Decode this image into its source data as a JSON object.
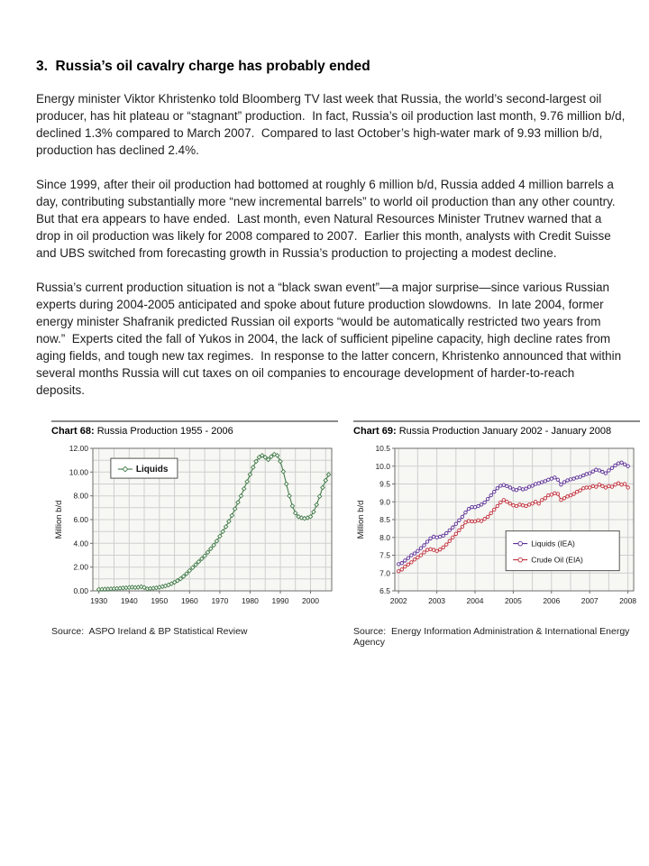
{
  "page": {
    "heading": "3.  Russia’s oil cavalry charge has probably ended",
    "paragraphs": [
      "Energy minister Viktor Khristenko told Bloomberg TV last week that Russia, the world’s second-largest oil producer, has hit plateau or “stagnant” production.  In fact, Russia’s oil production last month, 9.76 million b/d, declined 1.3% compared to March 2007.  Compared to last October’s high-water mark of 9.93 million b/d, production has declined 2.4%.",
      "Since 1999, after their oil production had bottomed at roughly 6 million b/d, Russia added 4 million barrels a day, contributing substantially more “new incremental barrels” to world oil production than any other country.  But that era appears to have ended.  Last month, even Natural Resources Minister Trutnev warned that a drop in oil production was likely for 2008 compared to 2007.  Earlier this month, analysts with Credit Suisse and UBS switched from forecasting growth in Russia’s production to projecting a modest decline.",
      "Russia’s current production situation is not a “black swan event”—a major surprise—since various Russian experts during 2004-2005 anticipated and spoke about future production slowdowns.  In late 2004, former energy minister Shafranik predicted Russian oil exports “would be automatically restricted two years from now.”  Experts cited the fall of Yukos in 2004, the lack of sufficient pipeline capacity, high decline rates from aging fields, and tough new tax regimes.  In response to the latter concern, Khristenko announced that within several months Russia will cut taxes on oil companies to encourage development of harder-to-reach deposits."
    ]
  },
  "chart_data": [
    {
      "id": "chart-68",
      "type": "line",
      "title_bold": "Chart 68:",
      "title_rest": "Russia Production 1955 - 2006",
      "ylabel": "Million b/d",
      "ylim": [
        0,
        12
      ],
      "ytick_step": 2,
      "ytick_decimals": 2,
      "xlim": [
        1928,
        2007
      ],
      "xticks": [
        1930,
        1940,
        1950,
        1960,
        1970,
        1980,
        1990,
        2000
      ],
      "grid": {
        "x0": 1930,
        "dx": 5,
        "y0": 1,
        "dy": 1
      },
      "grid_on": true,
      "x0": 1930,
      "dx": 1,
      "legend_position": "upper-left",
      "plot_bg": "#f7f7f4",
      "series": [
        {
          "name": "Liquids",
          "color": "#457d4b",
          "marker": "diamond",
          "values": [
            0.12,
            0.13,
            0.14,
            0.15,
            0.17,
            0.18,
            0.2,
            0.22,
            0.24,
            0.26,
            0.28,
            0.31,
            0.28,
            0.3,
            0.35,
            0.28,
            0.17,
            0.19,
            0.22,
            0.26,
            0.3,
            0.36,
            0.42,
            0.5,
            0.6,
            0.72,
            0.86,
            1.02,
            1.22,
            1.45,
            1.7,
            1.95,
            2.2,
            2.45,
            2.7,
            2.95,
            3.25,
            3.55,
            3.85,
            4.2,
            4.6,
            5.0,
            5.4,
            5.85,
            6.35,
            6.9,
            7.45,
            8.0,
            8.6,
            9.2,
            9.8,
            10.4,
            10.9,
            11.25,
            11.4,
            11.25,
            11.05,
            11.3,
            11.5,
            11.4,
            10.9,
            10.05,
            9.0,
            8.0,
            7.15,
            6.55,
            6.25,
            6.15,
            6.1,
            6.15,
            6.25,
            6.65,
            7.25,
            7.95,
            8.7,
            9.3,
            9.8
          ]
        }
      ],
      "source": "Source:  ASPO Ireland & BP Statistical Review"
    },
    {
      "id": "chart-69",
      "type": "line",
      "title_bold": "Chart 69:",
      "title_rest": "Russia Production January 2002 - January 2008",
      "ylabel": "Million b/d",
      "ylim": [
        6.5,
        10.5
      ],
      "ytick_step": 0.5,
      "ytick_decimals": 1,
      "xlim": [
        2001.9,
        2008.15
      ],
      "xticks": [
        2002,
        2003,
        2004,
        2005,
        2006,
        2007,
        2008
      ],
      "grid": {
        "x0": 2002,
        "dx": 0.5,
        "y0": 7,
        "dy": 0.5
      },
      "grid_on": true,
      "x0": 2002,
      "dx": 0.0833333,
      "legend_position": "lower-right",
      "plot_bg": "#f7f7f4",
      "series": [
        {
          "name": "Liquids (IEA)",
          "color": "#5b2f96",
          "marker": "circle",
          "values": [
            7.25,
            7.28,
            7.35,
            7.42,
            7.5,
            7.55,
            7.62,
            7.7,
            7.78,
            7.88,
            7.97,
            8.02,
            8.0,
            8.02,
            8.05,
            8.12,
            8.2,
            8.28,
            8.38,
            8.48,
            8.58,
            8.7,
            8.8,
            8.85,
            8.85,
            8.88,
            8.92,
            8.98,
            9.08,
            9.18,
            9.28,
            9.38,
            9.45,
            9.47,
            9.44,
            9.4,
            9.35,
            9.33,
            9.38,
            9.35,
            9.37,
            9.42,
            9.45,
            9.5,
            9.52,
            9.55,
            9.58,
            9.62,
            9.65,
            9.68,
            9.62,
            9.48,
            9.55,
            9.6,
            9.63,
            9.65,
            9.68,
            9.7,
            9.74,
            9.78,
            9.8,
            9.85,
            9.9,
            9.88,
            9.84,
            9.8,
            9.88,
            9.95,
            10.02,
            10.08,
            10.1,
            10.05,
            10.0
          ]
        },
        {
          "name": "Crude Oil (EIA)",
          "color": "#c02f3a",
          "marker": "circle",
          "values": [
            7.05,
            7.1,
            7.18,
            7.24,
            7.3,
            7.38,
            7.44,
            7.5,
            7.58,
            7.65,
            7.67,
            7.65,
            7.62,
            7.66,
            7.72,
            7.8,
            7.9,
            8.0,
            8.1,
            8.2,
            8.3,
            8.42,
            8.46,
            8.45,
            8.45,
            8.48,
            8.46,
            8.52,
            8.58,
            8.68,
            8.78,
            8.88,
            8.98,
            9.05,
            9.0,
            8.95,
            8.9,
            8.88,
            8.92,
            8.9,
            8.88,
            8.92,
            8.95,
            9.0,
            8.95,
            9.05,
            9.1,
            9.18,
            9.2,
            9.24,
            9.22,
            9.05,
            9.1,
            9.15,
            9.18,
            9.22,
            9.28,
            9.32,
            9.38,
            9.4,
            9.4,
            9.44,
            9.42,
            9.48,
            9.44,
            9.4,
            9.44,
            9.42,
            9.48,
            9.52,
            9.48,
            9.5,
            9.4
          ]
        }
      ],
      "source": "Source:  Energy Information Administration & International Energy Agency"
    }
  ]
}
